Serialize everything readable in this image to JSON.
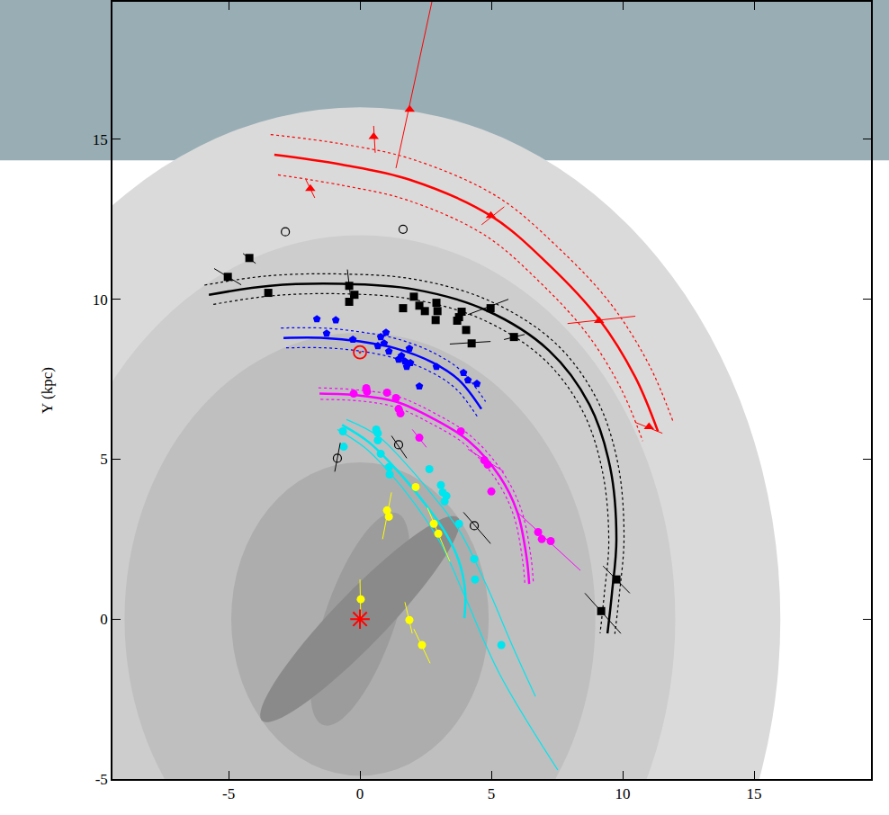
{
  "chart_data": {
    "type": "scatter",
    "ylabel": "Y (kpc)",
    "xlim": [
      -9.42,
      19.45
    ],
    "ylim": [
      -5,
      19.3
    ],
    "xticks": [
      -5,
      0,
      5,
      10,
      15
    ],
    "yticks": [
      -5,
      0,
      5,
      10,
      15
    ],
    "grid": false,
    "center": {
      "x": 0,
      "y": 0,
      "color": "#ff0000"
    },
    "sun": {
      "x": 0,
      "y": 8.34,
      "color": "#ff0000"
    },
    "regions": {
      "disks": [
        {
          "r": 16,
          "color": "#dadada"
        },
        {
          "r": 12,
          "color": "#cdcdcd"
        },
        {
          "r": 8.96,
          "color": "#bfbfbf"
        },
        {
          "r": 4.9,
          "color": "#adadad"
        }
      ],
      "bars": [
        {
          "a": 3.6,
          "b": 1.3,
          "angle": 66,
          "color": "#9c9c9c"
        },
        {
          "a": 4.9,
          "b": 0.9,
          "angle": 40,
          "color": "#8a8a8a"
        }
      ]
    },
    "arms": [
      {
        "color": "#ff0000",
        "line_style": "dotted",
        "x": [
          -3.26,
          -0.69,
          1.89,
          4.98,
          7.2,
          9.1,
          10.48,
          11.34
        ],
        "y": [
          14.52,
          14.21,
          13.74,
          12.61,
          11.07,
          9.38,
          7.56,
          5.87
        ],
        "upper": {
          "x": [
            -3.4,
            -0.72,
            1.98,
            5.22,
            7.55,
            9.55,
            11.01,
            11.92
          ],
          "y": [
            15.15,
            14.86,
            14.38,
            13.21,
            11.61,
            9.85,
            7.94,
            6.17
          ]
        },
        "lower": {
          "x": [
            -3.12,
            -0.66,
            1.8,
            4.74,
            6.85,
            8.65,
            9.95,
            10.76
          ],
          "y": [
            13.89,
            13.56,
            13.1,
            12.01,
            10.53,
            8.91,
            7.18,
            5.57
          ]
        }
      },
      {
        "color": "#000000",
        "line_style": "dotted",
        "x": [
          -5.75,
          -3.42,
          -0.68,
          2.05,
          4.79,
          7.19,
          8.73,
          9.52,
          9.76,
          9.59,
          9.42
        ],
        "y": [
          10.14,
          10.42,
          10.48,
          10.31,
          9.66,
          8.4,
          6.71,
          4.75,
          2.5,
          0.81,
          -0.45
        ],
        "upper": {
          "x": [
            -5.92,
            -3.52,
            -0.7,
            2.11,
            4.93,
            7.41,
            8.99,
            9.81,
            10.05,
            9.88,
            9.7
          ],
          "y": [
            10.44,
            10.73,
            10.79,
            10.62,
            9.95,
            8.65,
            6.91,
            4.89,
            2.58,
            0.83,
            -0.46
          ]
        },
        "lower": {
          "x": [
            -5.58,
            -3.32,
            -0.66,
            1.99,
            4.65,
            6.97,
            8.47,
            9.23,
            9.47,
            9.3,
            9.14
          ],
          "y": [
            9.84,
            10.11,
            10.17,
            10.0,
            9.37,
            8.15,
            6.51,
            4.61,
            2.43,
            0.79,
            -0.44
          ]
        }
      },
      {
        "color": "#0000ff",
        "line_style": "dotted",
        "x": [
          -2.91,
          -1.37,
          0,
          1.37,
          2.74,
          3.77,
          4.62
        ],
        "y": [
          8.79,
          8.79,
          8.68,
          8.46,
          8.03,
          7.47,
          6.57
        ],
        "upper": {
          "x": [
            -3.01,
            -1.42,
            0,
            1.42,
            2.84,
            3.9,
            4.78
          ],
          "y": [
            9.1,
            9.1,
            8.98,
            8.76,
            8.31,
            7.73,
            6.8
          ]
        },
        "lower": {
          "x": [
            -2.81,
            -1.32,
            0,
            1.32,
            2.64,
            3.64,
            4.46
          ],
          "y": [
            8.48,
            8.48,
            8.38,
            8.16,
            7.75,
            7.21,
            6.34
          ]
        }
      },
      {
        "color": "#ff00ff",
        "line_style": "dotted",
        "x": [
          -1.54,
          0,
          1.37,
          2.74,
          4.11,
          5.31,
          5.99,
          6.34,
          6.44
        ],
        "y": [
          7.05,
          6.99,
          6.8,
          6.29,
          5.59,
          4.47,
          3.34,
          1.94,
          1.1
        ],
        "upper": {
          "x": [
            -1.58,
            0,
            1.4,
            2.81,
            4.21,
            5.44,
            6.14,
            6.5,
            6.6
          ],
          "y": [
            7.23,
            7.16,
            6.97,
            6.45,
            5.73,
            4.58,
            3.42,
            1.99,
            1.13
          ]
        },
        "lower": {
          "x": [
            -1.5,
            0,
            1.34,
            2.67,
            4.01,
            5.18,
            5.84,
            6.18,
            6.28
          ],
          "y": [
            6.87,
            6.82,
            6.63,
            6.13,
            5.45,
            4.36,
            3.26,
            1.89,
            1.07
          ]
        }
      },
      {
        "color": "#00e5ee",
        "line_style": "solid",
        "x": [
          -0.68,
          0.34,
          1.37,
          2.4,
          3.25,
          3.77,
          4.01,
          3.97
        ],
        "y": [
          6.07,
          5.53,
          4.69,
          3.68,
          2.7,
          1.8,
          0.81,
          0.03
        ],
        "upper": {
          "x": [
            -0.51,
            0.68,
            1.71,
            2.74,
            3.77,
            4.79,
            5.82,
            6.68
          ],
          "y": [
            6.24,
            5.73,
            4.89,
            3.9,
            2.78,
            1.1,
            -0.87,
            -2.42
          ]
        },
        "lower": {
          "x": [
            -0.86,
            0.17,
            1.1,
            2.12,
            3.08,
            3.94,
            5.31,
            7.53
          ],
          "y": [
            5.93,
            5.37,
            4.61,
            3.57,
            2.36,
            0.81,
            -1.71,
            -4.72
          ]
        }
      }
    ],
    "series": [
      {
        "color": "#ff0000",
        "marker": "triangle-up",
        "x": [
          0.52,
          1.89,
          -1.89,
          4.98,
          9.1,
          11.0
        ],
        "y": [
          15.08,
          15.93,
          13.46,
          12.61,
          9.33,
          6.01
        ],
        "errors": [
          [
            0.52,
            15.42,
            0.58,
            14.58
          ],
          [
            1.37,
            14.1,
            2.75,
            19.35
          ],
          [
            -2.06,
            13.74,
            -1.72,
            13.17
          ],
          [
            4.63,
            12.33,
            5.49,
            12.89
          ],
          [
            7.9,
            9.24,
            10.48,
            9.47
          ],
          [
            10.48,
            6.15,
            11.51,
            5.81
          ]
        ]
      },
      {
        "color": "#000000",
        "marker": "square",
        "x": [
          -4.21,
          -5.03,
          -3.49,
          -0.41,
          -0.41,
          -0.21,
          1.64,
          2.05,
          2.26,
          2.47,
          2.88,
          2.95,
          2.91,
          3.77,
          3.87,
          3.7,
          4.04,
          4.25,
          4.97,
          5.86,
          9.18,
          9.76
        ],
        "y": [
          11.29,
          10.7,
          10.2,
          10.42,
          9.92,
          10.14,
          9.72,
          10.08,
          9.8,
          9.63,
          9.35,
          9.63,
          9.89,
          9.44,
          9.61,
          9.33,
          9.04,
          8.62,
          9.72,
          8.82,
          0.25,
          1.24
        ],
        "errors": [
          [
            -4.45,
            11.43,
            -3.97,
            11.12
          ],
          [
            -5.55,
            10.96,
            -4.52,
            10.45
          ],
          null,
          [
            -0.48,
            10.93,
            -0.34,
            9.94
          ],
          null,
          null,
          null,
          null,
          null,
          null,
          null,
          null,
          null,
          null,
          null,
          null,
          null,
          [
            3.42,
            8.6,
            4.97,
            8.68
          ],
          [
            4.11,
            9.52,
            5.65,
            10.0
          ],
          [
            5.48,
            8.74,
            6.27,
            8.9
          ],
          [
            8.56,
            0.81,
            9.93,
            -0.45
          ],
          [
            9.25,
            1.66,
            10.27,
            0.81
          ]
        ]
      },
      {
        "color": "#0000ff",
        "marker": "pentagon",
        "x": [
          -1.64,
          -1.27,
          -0.92,
          -0.27,
          0.68,
          0.79,
          0.92,
          0.99,
          1.1,
          1.47,
          1.58,
          1.71,
          1.88,
          1.92,
          1.78,
          2.26,
          2.91,
          3.94,
          4.11,
          4.45
        ],
        "y": [
          9.38,
          8.93,
          9.35,
          8.74,
          8.54,
          8.82,
          8.62,
          8.96,
          8.37,
          8.12,
          8.23,
          8.06,
          8.46,
          8.01,
          7.89,
          7.28,
          7.89,
          7.7,
          7.47,
          7.36
        ],
        "errors": [
          null,
          null,
          null,
          null,
          null,
          null,
          null,
          null,
          null,
          null,
          null,
          null,
          null,
          null,
          null,
          null,
          null,
          null,
          null,
          null
        ]
      },
      {
        "color": "#ff00ff",
        "marker": "circle",
        "x": [
          -0.24,
          0.24,
          0.27,
          1.03,
          1.37,
          1.47,
          1.54,
          2.26,
          3.84,
          4.73,
          4.86,
          5.0,
          6.78,
          6.92,
          7.26
        ],
        "y": [
          7.05,
          7.22,
          7.11,
          7.08,
          6.91,
          6.57,
          6.43,
          5.67,
          5.87,
          4.97,
          4.83,
          3.99,
          2.72,
          2.5,
          2.44
        ],
        "errors": [
          null,
          null,
          null,
          null,
          null,
          null,
          null,
          [
            1.99,
            5.93,
            2.53,
            5.37
          ],
          null,
          [
            4.11,
            5.31,
            5.48,
            4.61
          ],
          null,
          null,
          [
            5.99,
            3.34,
            8.39,
            1.52
          ],
          null,
          null
        ]
      },
      {
        "color": "#00e5ee",
        "marker": "circle",
        "x": [
          -0.65,
          -0.62,
          0.62,
          0.68,
          0.68,
          0.79,
          1.1,
          1.13,
          2.64,
          3.08,
          3.15,
          3.29,
          3.22,
          3.77,
          4.35,
          4.38,
          5.38
        ],
        "y": [
          5.87,
          5.39,
          5.93,
          5.81,
          5.59,
          5.17,
          4.75,
          4.52,
          4.69,
          4.19,
          3.96,
          3.85,
          3.68,
          2.98,
          1.88,
          1.24,
          -0.81
        ],
        "errors": [
          null,
          null,
          null,
          null,
          null,
          null,
          null,
          null,
          null,
          null,
          null,
          null,
          null,
          null,
          null,
          null,
          null
        ]
      },
      {
        "color": "#ffff00",
        "marker": "circle",
        "x": [
          0.03,
          1.03,
          1.1,
          2.12,
          2.81,
          2.98,
          1.88,
          2.36
        ],
        "y": [
          0.62,
          3.4,
          3.2,
          4.13,
          2.98,
          2.67,
          -0.03,
          -0.81
        ],
        "errors": [
          [
            0,
            1.24,
            0.03,
            -0.03
          ],
          [
            1.2,
            3.96,
            0.86,
            2.5
          ],
          null,
          null,
          [
            2.57,
            3.48,
            3.42,
            1.8
          ],
          null,
          [
            1.71,
            0.53,
            1.99,
            -0.45
          ],
          [
            2.05,
            -0.31,
            2.67,
            -1.38
          ]
        ]
      },
      {
        "color": "#000000",
        "marker": "circle-open",
        "x": [
          -2.84,
          1.64,
          -0.86,
          1.47,
          4.35
        ],
        "y": [
          12.11,
          12.19,
          5.03,
          5.45,
          2.92
        ],
        "errors": [
          null,
          null,
          [
            -0.96,
            4.61,
            -0.75,
            5.51
          ],
          [
            1.2,
            5.73,
            1.78,
            5.03
          ],
          [
            3.94,
            3.34,
            4.97,
            2.36
          ]
        ]
      }
    ]
  }
}
